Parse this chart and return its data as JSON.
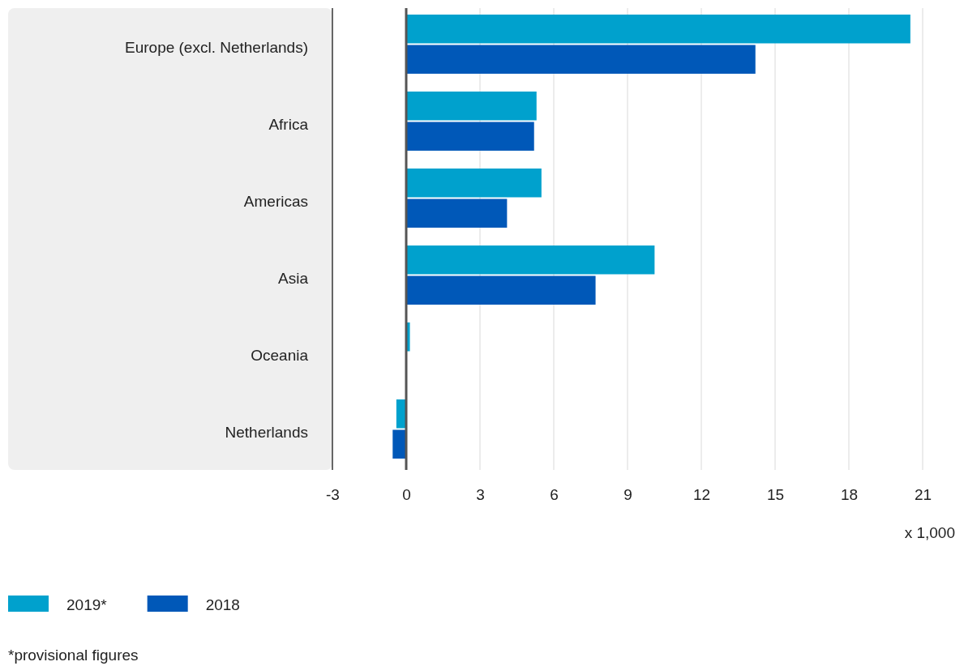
{
  "chart_data": {
    "type": "bar",
    "orientation": "horizontal",
    "categories": [
      "Europe (excl. Netherlands)",
      "Africa",
      "Americas",
      "Asia",
      "Oceania",
      "Netherlands"
    ],
    "series": [
      {
        "name": "2019*",
        "color": "#00a1cd",
        "values": [
          20.5,
          5.3,
          5.5,
          10.1,
          0.15,
          -0.4
        ]
      },
      {
        "name": "2018",
        "color": "#0058b8",
        "values": [
          14.2,
          5.2,
          4.1,
          7.7,
          0,
          -0.55
        ]
      }
    ],
    "xlim": [
      -3,
      21
    ],
    "xticks": [
      -3,
      0,
      3,
      6,
      9,
      12,
      15,
      18,
      21
    ],
    "xlabel": "x 1,000",
    "grid": "x",
    "legend": "bottom left",
    "annotations": [
      "*provisional figures"
    ]
  }
}
